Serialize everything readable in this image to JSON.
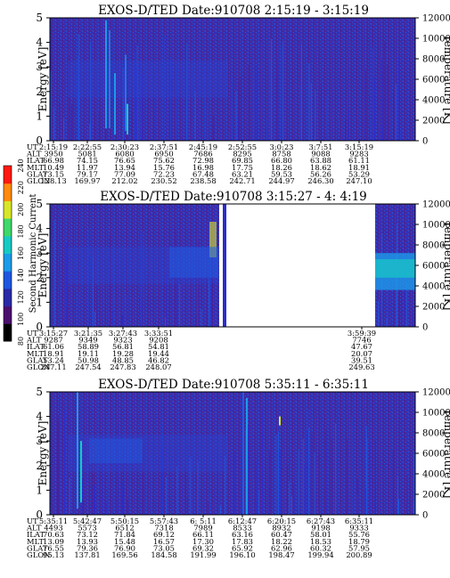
{
  "colorbar": {
    "label": "Second Harmonic Current",
    "ticks": [
      "80",
      "100",
      "120",
      "140",
      "160",
      "180",
      "200",
      "220",
      "240"
    ],
    "colors": [
      "#000000",
      "#4b0f6e",
      "#2a2aa8",
      "#1f56e0",
      "#1c9ae8",
      "#18c9c4",
      "#3fd86a",
      "#d8e62a",
      "#ff8a10",
      "#ff1a10"
    ]
  },
  "chart_data": [
    {
      "type": "heatmap",
      "title": "EXOS-D/TED   Date:910708  2:15:19 - 3:15:19",
      "ylabel": "Energy [eV]",
      "y2label": "Temperature [K]",
      "ylim": [
        0,
        5
      ],
      "y2lim": [
        0,
        12000
      ],
      "yticks": [
        "0",
        "1",
        "2",
        "3",
        "4",
        "5"
      ],
      "y2ticks": [
        "0",
        "2000",
        "4000",
        "6000",
        "8000",
        "10000",
        "12000"
      ],
      "data_gap": null,
      "columns": [
        {
          "UT": "2:15:19",
          "ALT": "3950",
          "ILAT": "66.98",
          "MLT": "10.49",
          "GLAT": "73.15",
          "GLON": "128.13"
        },
        {
          "UT": "2:22:55",
          "ALT": "5081",
          "ILAT": "74.15",
          "MLT": "11.97",
          "GLAT": "79.17",
          "GLON": "169.97"
        },
        {
          "UT": "2:30:23",
          "ALT": "6080",
          "ILAT": "76.65",
          "MLT": "13.94",
          "GLAT": "77.09",
          "GLON": "212.02"
        },
        {
          "UT": "2:37:51",
          "ALT": "6950",
          "ILAT": "75.62",
          "MLT": "15.76",
          "GLAT": "72.23",
          "GLON": "230.52"
        },
        {
          "UT": "2:45:19",
          "ALT": "7686",
          "ILAT": "72.98",
          "MLT": "16.98",
          "GLAT": "67.48",
          "GLON": "238.58"
        },
        {
          "UT": "2:52:55",
          "ALT": "8295",
          "ILAT": "69.85",
          "MLT": "17.75",
          "GLAT": "63.21",
          "GLON": "242.71"
        },
        {
          "UT": "3:0:23",
          "ALT": "8758",
          "ILAT": "66.80",
          "MLT": "18.26",
          "GLAT": "59.53",
          "GLON": "244.97"
        },
        {
          "UT": "3:7:51",
          "ALT": "9088",
          "ILAT": "63.88",
          "MLT": "18.62",
          "GLAT": "56.26",
          "GLON": "246.30"
        },
        {
          "UT": "3:15:19",
          "ALT": "9283",
          "ILAT": "61.11",
          "MLT": "18.91",
          "GLAT": "53.29",
          "GLON": "247.10"
        }
      ]
    },
    {
      "type": "heatmap",
      "title": "EXOS-D/TED   Date:910708  3:15:27 - 4: 4:19",
      "ylabel": "Energy [eV]",
      "y2label": "Temperature [K]",
      "ylim": [
        0,
        5
      ],
      "y2lim": [
        0,
        12000
      ],
      "yticks": [
        "0",
        "1",
        "2",
        "3",
        "4",
        "5"
      ],
      "y2ticks": [
        "0",
        "2000",
        "4000",
        "6000",
        "8000",
        "10000",
        "12000"
      ],
      "data_gap": [
        "3:35:00",
        "3:59:39"
      ],
      "columns": [
        {
          "UT": "3:15:27",
          "ALT": "9287",
          "ILAT": "61.06",
          "MLT": "18.91",
          "GLAT": "53.24",
          "GLON": "247.11"
        },
        {
          "UT": "3:21:35",
          "ALT": "9349",
          "ILAT": "58.89",
          "MLT": "19.11",
          "GLAT": "50.98",
          "GLON": "247.54"
        },
        {
          "UT": "3:27:43",
          "ALT": "9323",
          "ILAT": "56.81",
          "MLT": "19.28",
          "GLAT": "48.85",
          "GLON": "247.83"
        },
        {
          "UT": "3:33:51",
          "ALT": "9208",
          "ILAT": "54.81",
          "MLT": "19.44",
          "GLAT": "46.82",
          "GLON": "248.07"
        },
        {
          "UT": "3:59:39",
          "ALT": "7746",
          "ILAT": "47.67",
          "MLT": "20.07",
          "GLAT": "39.51",
          "GLON": "249.63"
        }
      ]
    },
    {
      "type": "heatmap",
      "title": "EXOS-D/TED   Date:910708  5:35:11 - 6:35:11",
      "ylabel": "Energy [eV]",
      "y2label": "Temperature [K]",
      "ylim": [
        0,
        5
      ],
      "y2lim": [
        0,
        12000
      ],
      "yticks": [
        "0",
        "1",
        "2",
        "3",
        "4",
        "5"
      ],
      "y2ticks": [
        "0",
        "2000",
        "4000",
        "6000",
        "8000",
        "10000",
        "12000"
      ],
      "data_gap": null,
      "columns": [
        {
          "UT": "5:35:11",
          "ALT": "4493",
          "ILAT": "70.63",
          "MLT": "13.09",
          "GLAT": "76.55",
          "GLON": "95.13"
        },
        {
          "UT": "5:42:47",
          "ALT": "5573",
          "ILAT": "73.12",
          "MLT": "13.93",
          "GLAT": "79.36",
          "GLON": "137.81"
        },
        {
          "UT": "5:50:15",
          "ALT": "6512",
          "ILAT": "71.84",
          "MLT": "15.48",
          "GLAT": "76.90",
          "GLON": "169.56"
        },
        {
          "UT": "5:57:43",
          "ALT": "7318",
          "ILAT": "69.12",
          "MLT": "16.57",
          "GLAT": "73.05",
          "GLON": "184.58"
        },
        {
          "UT": "6: 5:11",
          "ALT": "7989",
          "ILAT": "66.11",
          "MLT": "17.30",
          "GLAT": "69.32",
          "GLON": "191.99"
        },
        {
          "UT": "6:12:47",
          "ALT": "8533",
          "ILAT": "63.16",
          "MLT": "17.83",
          "GLAT": "65.92",
          "GLON": "196.10"
        },
        {
          "UT": "6:20:15",
          "ALT": "8932",
          "ILAT": "60.47",
          "MLT": "18.22",
          "GLAT": "62.96",
          "GLON": "198.47"
        },
        {
          "UT": "6:27:43",
          "ALT": "9198",
          "ILAT": "58.01",
          "MLT": "18.53",
          "GLAT": "60.32",
          "GLON": "199.94"
        },
        {
          "UT": "6:35:11",
          "ALT": "9333",
          "ILAT": "55.76",
          "MLT": "18.79",
          "GLAT": "57.95",
          "GLON": "200.89"
        }
      ]
    }
  ],
  "row_labels": [
    "UT",
    "ALT",
    "ILAT",
    "MLT",
    "GLAT",
    "GLON"
  ]
}
